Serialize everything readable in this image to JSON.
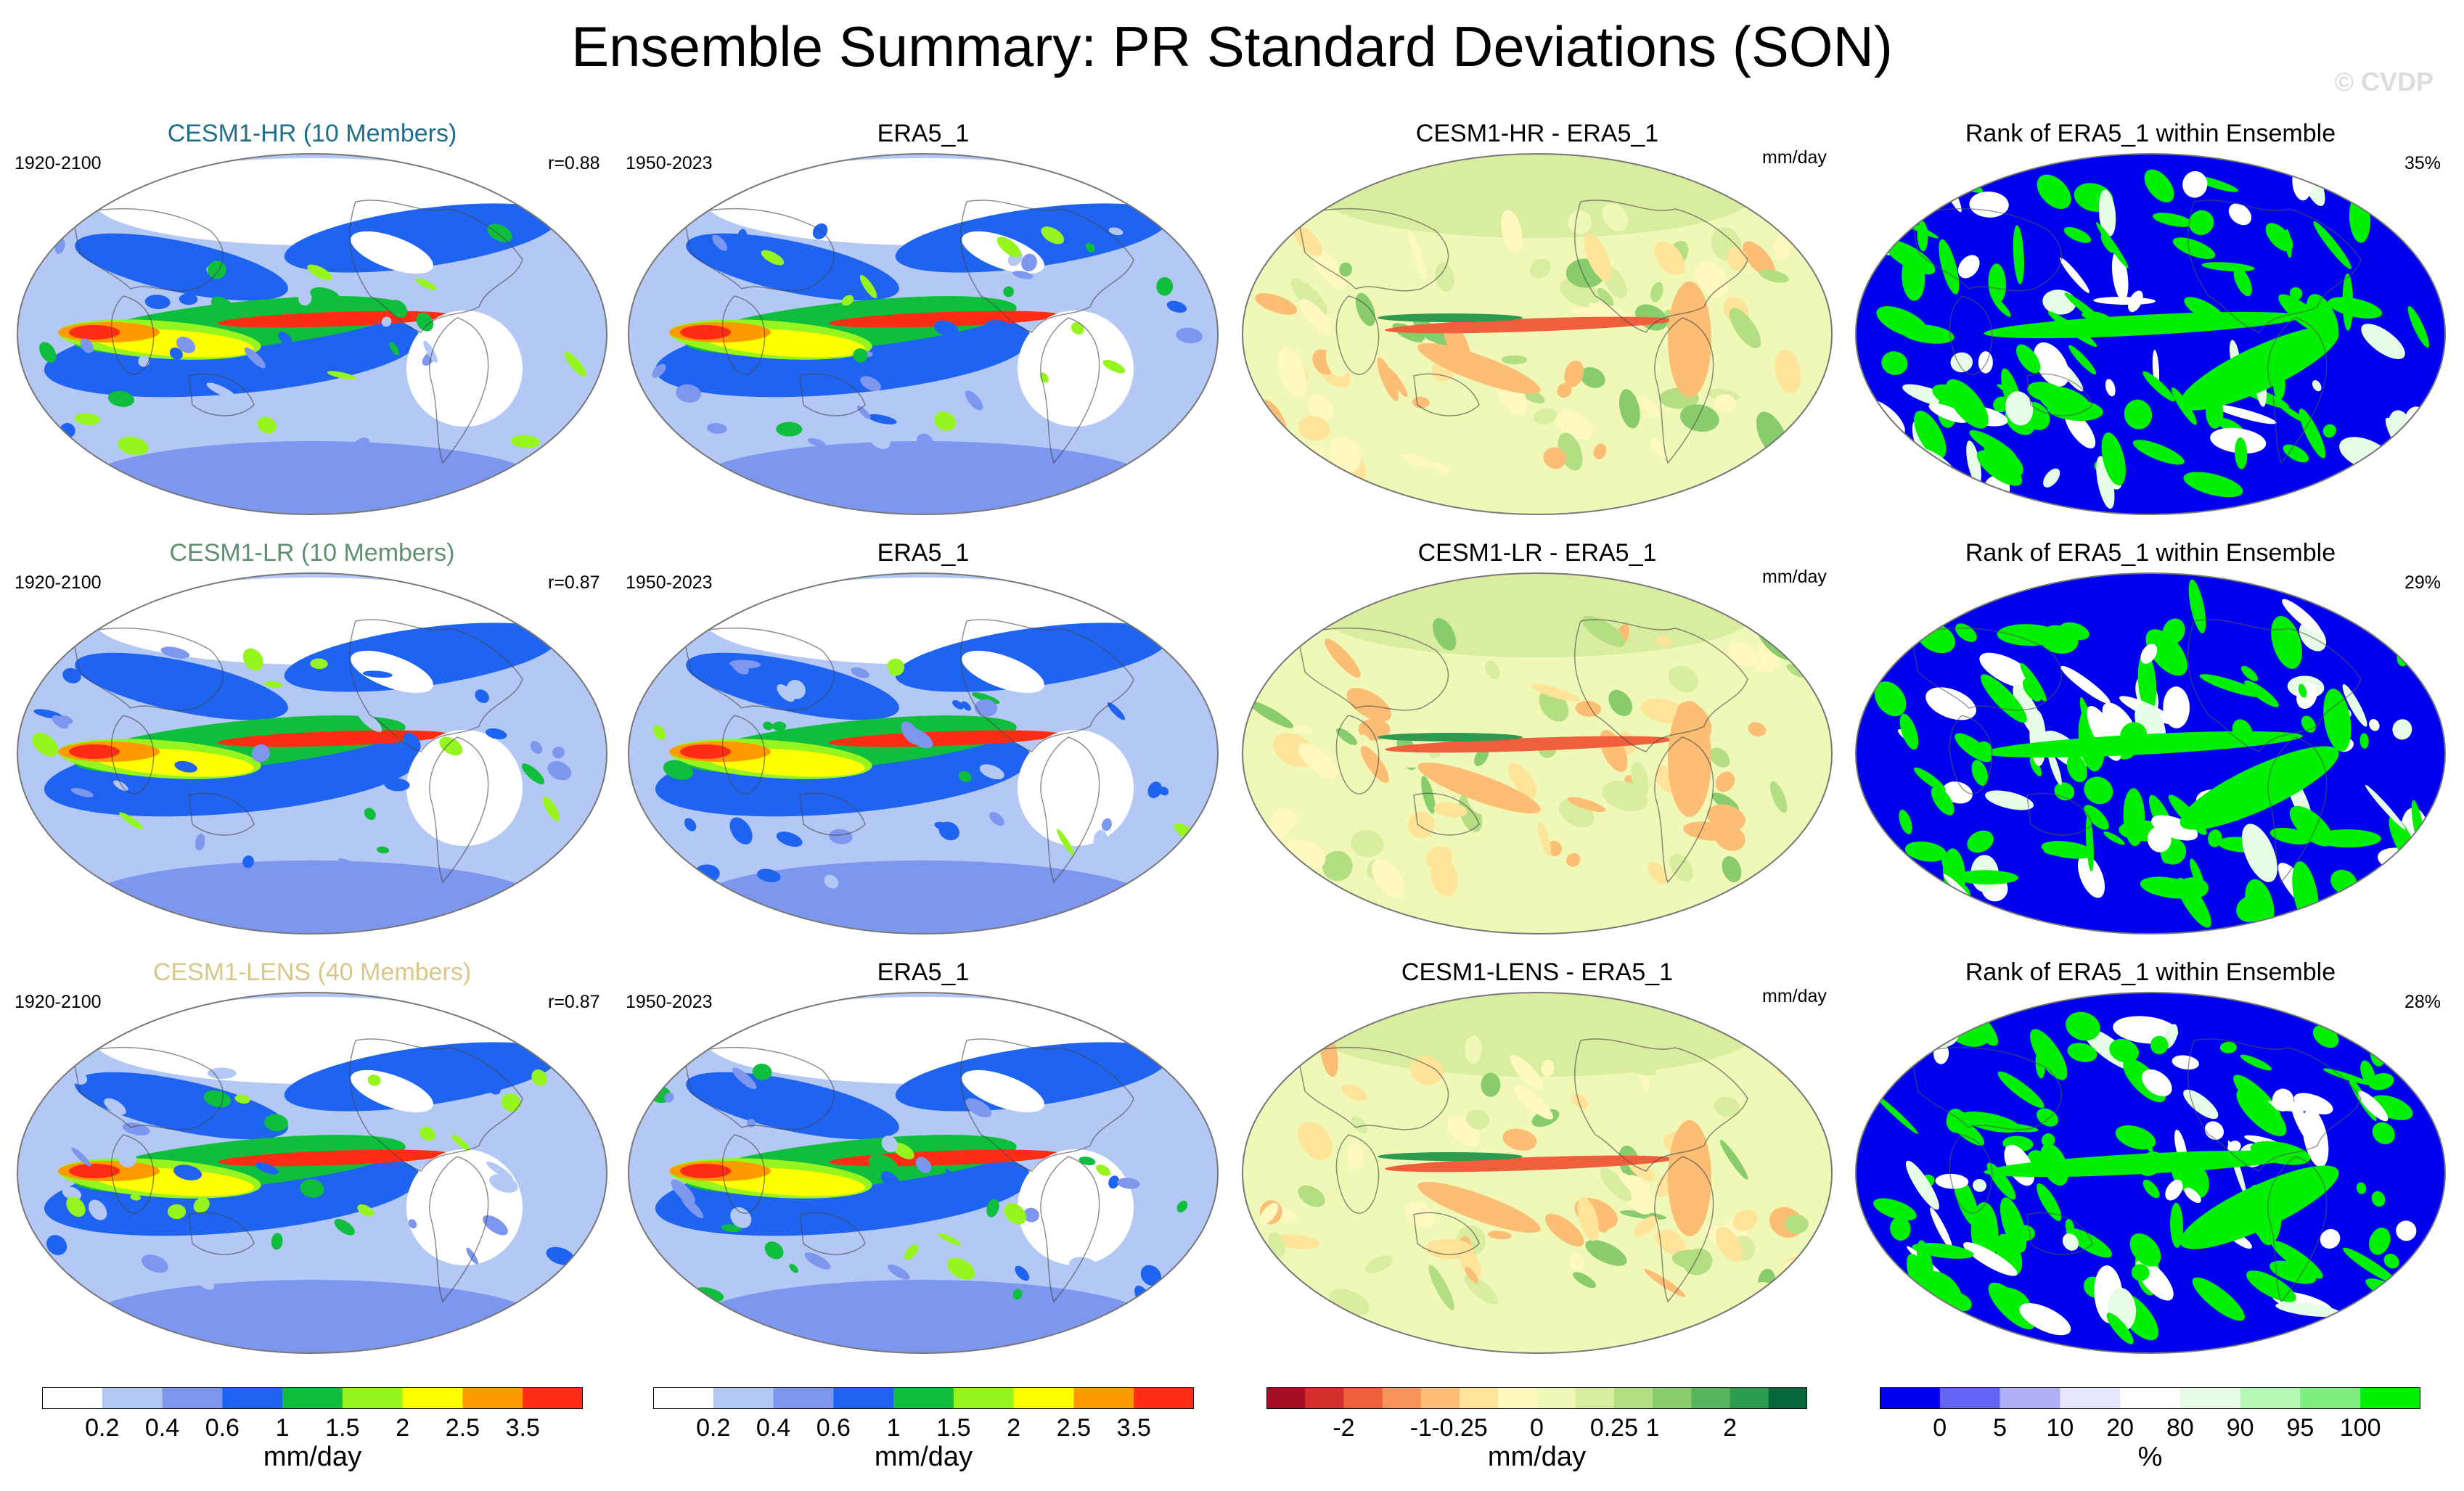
{
  "title": "Ensemble Summary: PR Standard Deviations (SON)",
  "watermark": "© CVDP",
  "rows": [
    {
      "model_title": "CESM1-HR (10 Members)",
      "model_title_color": "#1f6e8c",
      "model_years": "1920-2100",
      "correlation": "r=0.88",
      "obs_title": "ERA5_1",
      "obs_years": "1950-2023",
      "diff_title": "CESM1-HR - ERA5_1",
      "diff_units": "mm/day",
      "rank_title": "Rank of ERA5_1 within Ensemble",
      "rank_pct": "35%"
    },
    {
      "model_title": "CESM1-LR (10 Members)",
      "model_title_color": "#5f8f6f",
      "model_years": "1920-2100",
      "correlation": "r=0.87",
      "obs_title": "ERA5_1",
      "obs_years": "1950-2023",
      "diff_title": "CESM1-LR - ERA5_1",
      "diff_units": "mm/day",
      "rank_title": "Rank of ERA5_1 within Ensemble",
      "rank_pct": "29%"
    },
    {
      "model_title": "CESM1-LENS (40 Members)",
      "model_title_color": "#d9c78a",
      "model_years": "1920-2100",
      "correlation": "r=0.87",
      "obs_title": "ERA5_1",
      "obs_years": "1950-2023",
      "diff_title": "CESM1-LENS - ERA5_1",
      "diff_units": "mm/day",
      "rank_title": "Rank of ERA5_1 within Ensemble",
      "rank_pct": "28%"
    }
  ],
  "colorbars": [
    {
      "name": "model-sd-colorbar",
      "colors": [
        "#ffffff",
        "#b4c8f5",
        "#7d96ee",
        "#1e64f0",
        "#0fbe3c",
        "#96f51e",
        "#ffff00",
        "#ff9b00",
        "#ff2d14"
      ],
      "tick_labels": [
        "0.2",
        "0.4",
        "0.6",
        "1",
        "1.5",
        "2",
        "2.5",
        "3.5"
      ],
      "units": "mm/day"
    },
    {
      "name": "obs-sd-colorbar",
      "colors": [
        "#ffffff",
        "#b4c8f5",
        "#7d96ee",
        "#1e64f0",
        "#0fbe3c",
        "#96f51e",
        "#ffff00",
        "#ff9b00",
        "#ff2d14"
      ],
      "tick_labels": [
        "0.2",
        "0.4",
        "0.6",
        "1",
        "1.5",
        "2",
        "2.5",
        "3.5"
      ],
      "units": "mm/day"
    },
    {
      "name": "difference-colorbar",
      "colors": [
        "#a50f26",
        "#d42f2c",
        "#ef5f3c",
        "#f8945a",
        "#fcbd74",
        "#fee398",
        "#fff8bf",
        "#f0f8b8",
        "#d8eda0",
        "#b4de82",
        "#88cc6c",
        "#59b45e",
        "#2c9a4f",
        "#06683a"
      ],
      "tick_labels": [
        "-2",
        "-1",
        "-0.25",
        "0",
        "0.25",
        "1",
        "2"
      ],
      "tick_boundaries": [
        2,
        4,
        5,
        7,
        9,
        10,
        12
      ],
      "units": "mm/day"
    },
    {
      "name": "rank-colorbar",
      "colors": [
        "#0000f0",
        "#6464f5",
        "#afaff8",
        "#e6e6fc",
        "#ffffff",
        "#e6fce6",
        "#b4f8b4",
        "#7ff07f",
        "#00f000"
      ],
      "tick_labels": [
        "0",
        "5",
        "10",
        "20",
        "80",
        "90",
        "95",
        "100"
      ],
      "units": "%"
    }
  ],
  "chart_data": {
    "type": "heatmap",
    "title": "Ensemble Summary: PR Standard Deviations (SON)",
    "panels": [
      {
        "row": 1,
        "col": 1,
        "title": "CESM1-HR (10 Members)",
        "period": "1920-2100",
        "pattern_correlation": 0.88,
        "field": "PR standard deviation",
        "units": "mm/day"
      },
      {
        "row": 1,
        "col": 2,
        "title": "ERA5_1",
        "period": "1950-2023",
        "field": "PR standard deviation",
        "units": "mm/day"
      },
      {
        "row": 1,
        "col": 3,
        "title": "CESM1-HR - ERA5_1",
        "field": "difference",
        "units": "mm/day"
      },
      {
        "row": 1,
        "col": 4,
        "title": "Rank of ERA5_1 within Ensemble",
        "area_percent": 35,
        "units": "%"
      },
      {
        "row": 2,
        "col": 1,
        "title": "CESM1-LR (10 Members)",
        "period": "1920-2100",
        "pattern_correlation": 0.87,
        "field": "PR standard deviation",
        "units": "mm/day"
      },
      {
        "row": 2,
        "col": 2,
        "title": "ERA5_1",
        "period": "1950-2023",
        "field": "PR standard deviation",
        "units": "mm/day"
      },
      {
        "row": 2,
        "col": 3,
        "title": "CESM1-LR - ERA5_1",
        "field": "difference",
        "units": "mm/day"
      },
      {
        "row": 2,
        "col": 4,
        "title": "Rank of ERA5_1 within Ensemble",
        "area_percent": 29,
        "units": "%"
      },
      {
        "row": 3,
        "col": 1,
        "title": "CESM1-LENS (40 Members)",
        "period": "1920-2100",
        "pattern_correlation": 0.87,
        "field": "PR standard deviation",
        "units": "mm/day"
      },
      {
        "row": 3,
        "col": 2,
        "title": "ERA5_1",
        "period": "1950-2023",
        "field": "PR standard deviation",
        "units": "mm/day"
      },
      {
        "row": 3,
        "col": 3,
        "title": "CESM1-LENS - ERA5_1",
        "field": "difference",
        "units": "mm/day"
      },
      {
        "row": 3,
        "col": 4,
        "title": "Rank of ERA5_1 within Ensemble",
        "area_percent": 28,
        "units": "%"
      }
    ],
    "colorbar_levels": {
      "sd": [
        0.2,
        0.4,
        0.6,
        1,
        1.5,
        2,
        2.5,
        3.5
      ],
      "difference": [
        -2,
        -1,
        -0.25,
        0,
        0.25,
        1,
        2
      ],
      "rank": [
        0,
        5,
        10,
        20,
        80,
        90,
        95,
        100
      ]
    }
  }
}
